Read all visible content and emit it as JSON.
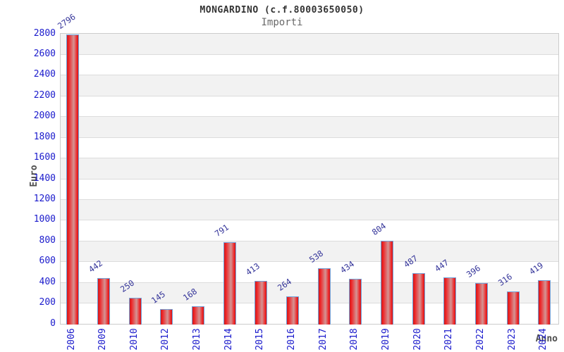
{
  "header": {
    "title": "MONGARDINO (c.f.80003650050)",
    "subtitle": "Importi"
  },
  "chart_data": {
    "type": "bar",
    "title": "MONGARDINO (c.f.80003650050)",
    "subtitle": "Importi",
    "xlabel": "Anno",
    "ylabel": "Euro",
    "categories": [
      "2006",
      "2009",
      "2010",
      "2012",
      "2013",
      "2014",
      "2015",
      "2016",
      "2017",
      "2018",
      "2019",
      "2020",
      "2021",
      "2022",
      "2023",
      "2024"
    ],
    "values": [
      2796,
      442,
      250,
      145,
      168,
      791,
      413,
      264,
      538,
      434,
      804,
      487,
      447,
      396,
      316,
      419
    ],
    "ylim": [
      0,
      2800
    ],
    "ytick_step": 200,
    "grid": true,
    "legend": "none",
    "colors": {
      "bar_edge": "#cc1b1c",
      "bar_bright": "#ee2224",
      "bar_center": "#d49494",
      "bar_border": "#73a2d9",
      "value_label": "#333399",
      "tick_label": "#1a1acc",
      "band_gray": "#f2f2f2",
      "gridline": "#dcdcdc",
      "axis_title": "#4d4d4d"
    }
  }
}
